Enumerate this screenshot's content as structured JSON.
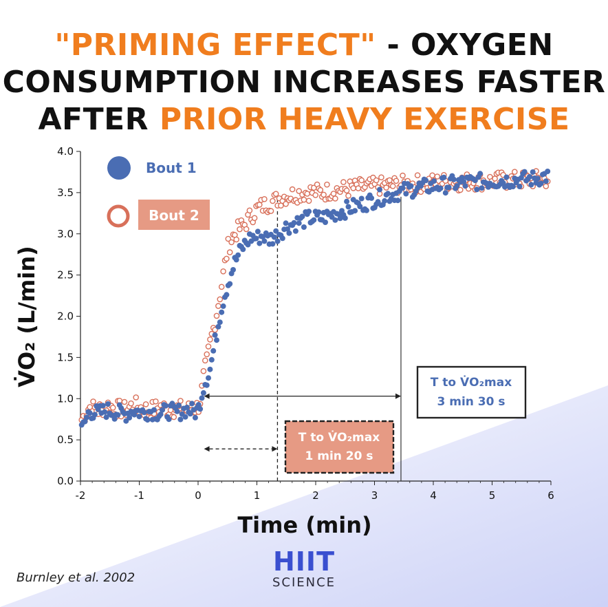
{
  "title": {
    "line1_highlight": "\"PRIMING EFFECT\"",
    "line1_rest": " - OXYGEN",
    "line2": "CONSUMPTION INCREASES FASTER",
    "line3_plain": "AFTER ",
    "line3_highlight": "PRIOR HEAVY EXERCISE"
  },
  "colors": {
    "highlight": "#f07d1e",
    "bout1": "#4a6db3",
    "bout2": "#d8705a",
    "bout2_box": "#e69a84"
  },
  "chart_data": {
    "type": "scatter",
    "xlabel": "Time (min)",
    "ylabel": "V̇O₂ (L/min)",
    "xlim": [
      -2,
      6
    ],
    "ylim": [
      0,
      4
    ],
    "xticks": [
      "-2",
      "-1",
      "0",
      "1",
      "2",
      "3",
      "4",
      "5",
      "6"
    ],
    "yticks": [
      "0.0",
      "0.5",
      "1.0",
      "1.5",
      "2.0",
      "2.5",
      "3.0",
      "3.5",
      "4.0"
    ],
    "grid": false,
    "legend_position": "top-left",
    "series": [
      {
        "name": "Bout 1",
        "marker": "filled-circle",
        "tau": 0.69,
        "x": [
          -2.0,
          -1.85,
          -1.7,
          -1.55,
          -1.4,
          -1.25,
          -1.1,
          -0.95,
          -0.8,
          -0.65,
          -0.5,
          -0.35,
          -0.2,
          -0.05,
          0.0,
          0.1,
          0.2,
          0.3,
          0.4,
          0.5,
          0.6,
          0.7,
          0.8,
          0.9,
          1.0,
          1.1,
          1.2,
          1.3,
          1.4,
          1.5,
          1.7,
          1.9,
          2.1,
          2.3,
          2.5,
          2.7,
          2.9,
          3.1,
          3.3,
          3.5,
          3.75,
          4.0,
          4.25,
          4.5,
          4.75,
          5.0,
          5.25,
          5.5,
          5.75,
          5.9
        ],
        "y": [
          0.58,
          0.85,
          0.82,
          0.86,
          0.84,
          0.81,
          0.86,
          0.83,
          0.85,
          0.82,
          0.85,
          0.83,
          0.87,
          0.84,
          0.86,
          1.17,
          1.34,
          1.73,
          2.12,
          2.38,
          2.61,
          2.77,
          2.88,
          2.96,
          2.95,
          2.98,
          2.93,
          2.97,
          3.02,
          3.09,
          3.14,
          3.19,
          3.19,
          3.24,
          3.29,
          3.34,
          3.39,
          3.44,
          3.48,
          3.52,
          3.56,
          3.58,
          3.6,
          3.62,
          3.63,
          3.64,
          3.65,
          3.66,
          3.67,
          3.7
        ]
      },
      {
        "name": "Bout 2",
        "marker": "open-circle",
        "tau": 0.34,
        "x": [
          -2.0,
          -1.85,
          -1.7,
          -1.55,
          -1.4,
          -1.25,
          -1.1,
          -0.95,
          -0.8,
          -0.65,
          -0.5,
          -0.35,
          -0.2,
          -0.05,
          0.0,
          0.05,
          0.1,
          0.15,
          0.2,
          0.3,
          0.4,
          0.5,
          0.6,
          0.7,
          0.8,
          0.9,
          1.0,
          1.1,
          1.2,
          1.3,
          1.4,
          1.5,
          1.7,
          1.9,
          2.1,
          2.3,
          2.5,
          2.7,
          2.9,
          3.1,
          3.3,
          3.5,
          3.75,
          4.0,
          4.25,
          4.5,
          4.75,
          5.0,
          5.25,
          5.5,
          5.75,
          5.9
        ],
        "y": [
          0.72,
          0.9,
          0.86,
          0.92,
          0.88,
          0.86,
          0.92,
          0.88,
          0.86,
          0.9,
          0.87,
          0.88,
          0.86,
          0.89,
          0.9,
          1.02,
          1.3,
          1.45,
          1.65,
          1.98,
          2.38,
          2.82,
          2.98,
          3.06,
          3.12,
          3.22,
          3.3,
          3.34,
          3.37,
          3.4,
          3.44,
          3.46,
          3.49,
          3.51,
          3.5,
          3.53,
          3.54,
          3.56,
          3.57,
          3.58,
          3.59,
          3.6,
          3.61,
          3.62,
          3.63,
          3.63,
          3.64,
          3.64,
          3.65,
          3.65,
          3.66,
          3.66
        ]
      }
    ],
    "annotations": [
      {
        "name": "bout2-tmax",
        "line1": "T to V̇O₂max",
        "line2": "1 min 20 s",
        "x_start": 0.1,
        "x_end": 1.35,
        "arrow_y": 0.39,
        "line_style": "dashed"
      },
      {
        "name": "bout1-tmax",
        "line1": "T to V̇O₂max",
        "line2": "3 min 30 s",
        "x_start": 0.1,
        "x_end": 3.45,
        "arrow_y": 1.03,
        "line_style": "solid"
      }
    ]
  },
  "citation": "Burnley et al. 2002",
  "brand": {
    "mark": "HIIT",
    "subtitle": "SCIENCE"
  }
}
